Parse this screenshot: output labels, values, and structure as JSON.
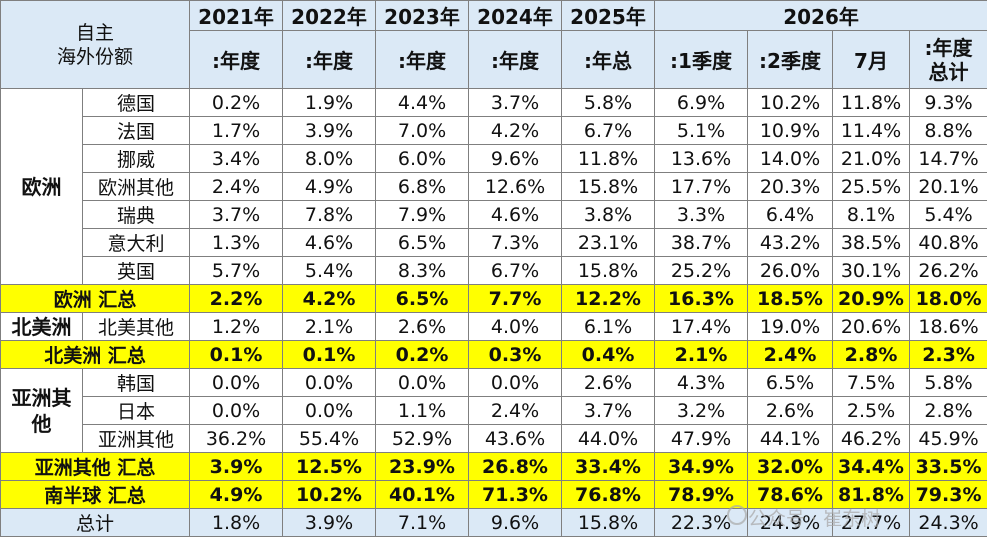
{
  "header": {
    "corner": [
      "自主",
      "海外份额"
    ],
    "years": [
      "2021年",
      "2022年",
      "2023年",
      "2024年",
      "2025年",
      "2026年"
    ],
    "subheaders": [
      ":年度",
      ":年度",
      ":年度",
      ":年度",
      ":年总",
      ":1季度",
      ":2季度",
      "7月",
      [
        ":年度",
        "总计"
      ]
    ]
  },
  "europe": {
    "region": "欧洲",
    "rows": [
      {
        "country": "德国",
        "values": [
          "0.2%",
          "1.9%",
          "4.4%",
          "3.7%",
          "5.8%",
          "6.9%",
          "10.2%",
          "11.8%",
          "9.3%"
        ]
      },
      {
        "country": "法国",
        "values": [
          "1.7%",
          "3.9%",
          "7.0%",
          "4.2%",
          "6.7%",
          "5.1%",
          "10.9%",
          "11.4%",
          "8.8%"
        ]
      },
      {
        "country": "挪威",
        "values": [
          "3.4%",
          "8.0%",
          "6.0%",
          "9.6%",
          "11.8%",
          "13.6%",
          "14.0%",
          "21.0%",
          "14.7%"
        ]
      },
      {
        "country": "欧洲其他",
        "values": [
          "2.4%",
          "4.9%",
          "6.8%",
          "12.6%",
          "15.8%",
          "17.7%",
          "20.3%",
          "25.5%",
          "20.1%"
        ]
      },
      {
        "country": "瑞典",
        "values": [
          "3.7%",
          "7.8%",
          "7.9%",
          "4.6%",
          "3.8%",
          "3.3%",
          "6.4%",
          "8.1%",
          "5.4%"
        ]
      },
      {
        "country": "意大利",
        "values": [
          "1.3%",
          "4.6%",
          "6.5%",
          "7.3%",
          "23.1%",
          "38.7%",
          "43.2%",
          "38.5%",
          "40.8%"
        ]
      },
      {
        "country": "英国",
        "values": [
          "5.7%",
          "5.4%",
          "8.3%",
          "6.7%",
          "15.8%",
          "25.2%",
          "26.0%",
          "30.1%",
          "26.2%"
        ]
      }
    ],
    "summary": {
      "label": "欧洲 汇总",
      "values": [
        "2.2%",
        "4.2%",
        "6.5%",
        "7.7%",
        "12.2%",
        "16.3%",
        "18.5%",
        "20.9%",
        "18.0%"
      ]
    }
  },
  "north_america": {
    "region": "北美洲",
    "rows": [
      {
        "country": "北美其他",
        "values": [
          "1.2%",
          "2.1%",
          "2.6%",
          "4.0%",
          "6.1%",
          "17.4%",
          "19.0%",
          "20.6%",
          "18.6%"
        ]
      }
    ],
    "summary": {
      "label": "北美洲 汇总",
      "values": [
        "0.1%",
        "0.1%",
        "0.2%",
        "0.3%",
        "0.4%",
        "2.1%",
        "2.4%",
        "2.8%",
        "2.3%"
      ]
    }
  },
  "asia": {
    "region": [
      "亚洲其",
      "他"
    ],
    "rows": [
      {
        "country": "韩国",
        "values": [
          "0.0%",
          "0.0%",
          "0.0%",
          "0.0%",
          "2.6%",
          "4.3%",
          "6.5%",
          "7.5%",
          "5.8%"
        ]
      },
      {
        "country": "日本",
        "values": [
          "0.0%",
          "0.0%",
          "1.1%",
          "2.4%",
          "3.7%",
          "3.2%",
          "2.6%",
          "2.5%",
          "2.8%"
        ]
      },
      {
        "country": "亚洲其他",
        "values": [
          "36.2%",
          "55.4%",
          "52.9%",
          "43.6%",
          "44.0%",
          "47.9%",
          "44.1%",
          "46.2%",
          "45.9%"
        ]
      }
    ],
    "summary": {
      "label": "亚洲其他 汇总",
      "values": [
        "3.9%",
        "12.5%",
        "23.9%",
        "26.8%",
        "33.4%",
        "34.9%",
        "32.0%",
        "34.4%",
        "33.5%"
      ]
    }
  },
  "southern_hemisphere": {
    "summary": {
      "label": "南半球 汇总",
      "values": [
        "4.9%",
        "10.2%",
        "40.1%",
        "71.3%",
        "76.8%",
        "78.9%",
        "78.6%",
        "81.8%",
        "79.3%"
      ]
    }
  },
  "total": {
    "label": "总计",
    "values": [
      "1.8%",
      "3.9%",
      "7.1%",
      "9.6%",
      "15.8%",
      "22.3%",
      "24.9%",
      "27.7%",
      "24.3%"
    ]
  },
  "watermark": {
    "text": "公众号 · 崔东树",
    "icon": "wechat-icon"
  }
}
